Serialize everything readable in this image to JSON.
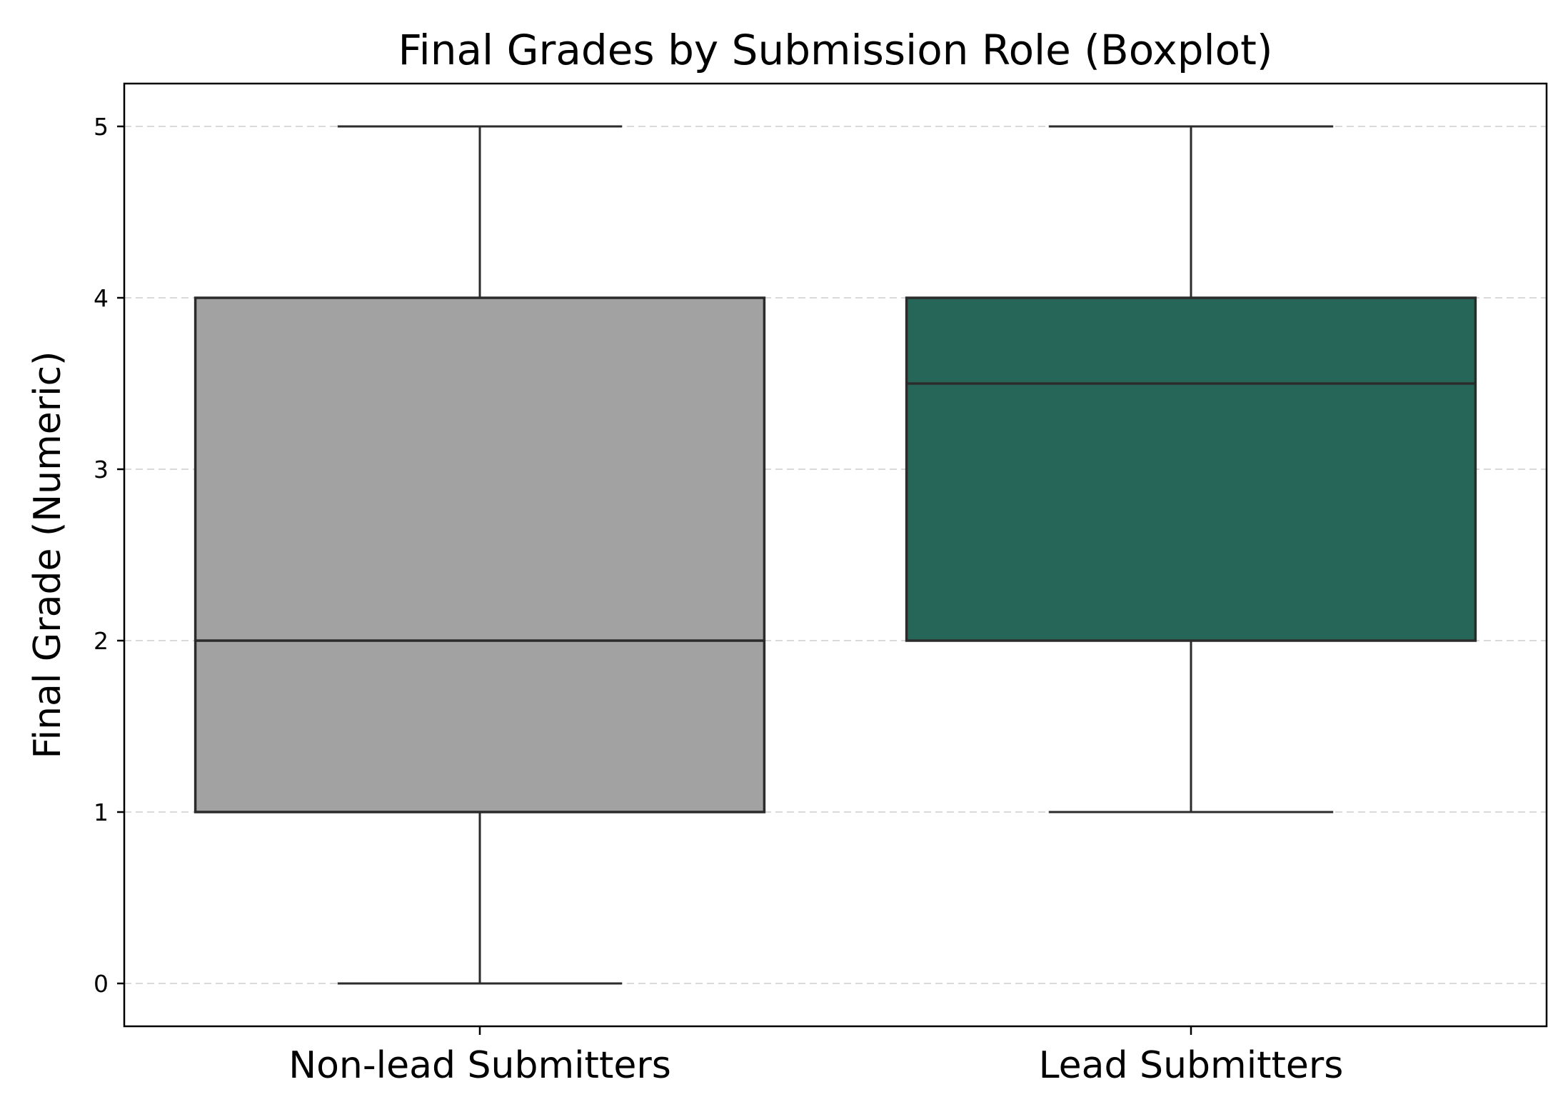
{
  "chart_data": {
    "type": "boxplot",
    "title": "Final Grades by Submission Role (Boxplot)",
    "xlabel": "",
    "ylabel": "Final Grade (Numeric)",
    "ylim": [
      -0.25,
      5.25
    ],
    "yticks": [
      0,
      1,
      2,
      3,
      4,
      5
    ],
    "grid": "y-dashed",
    "categories": [
      "Non-lead Submitters",
      "Lead Submitters"
    ],
    "boxes": [
      {
        "category": "Non-lead Submitters",
        "whisker_low": 0,
        "q1": 1,
        "median": 2,
        "q3": 4,
        "whisker_high": 5,
        "color": "#a2a2a2"
      },
      {
        "category": "Lead Submitters",
        "whisker_low": 1,
        "q1": 2,
        "median": 3.5,
        "q3": 4,
        "whisker_high": 5,
        "color": "#266659"
      }
    ],
    "line_color": "#2b2b2b",
    "grid_color": "#d9d9d9"
  }
}
